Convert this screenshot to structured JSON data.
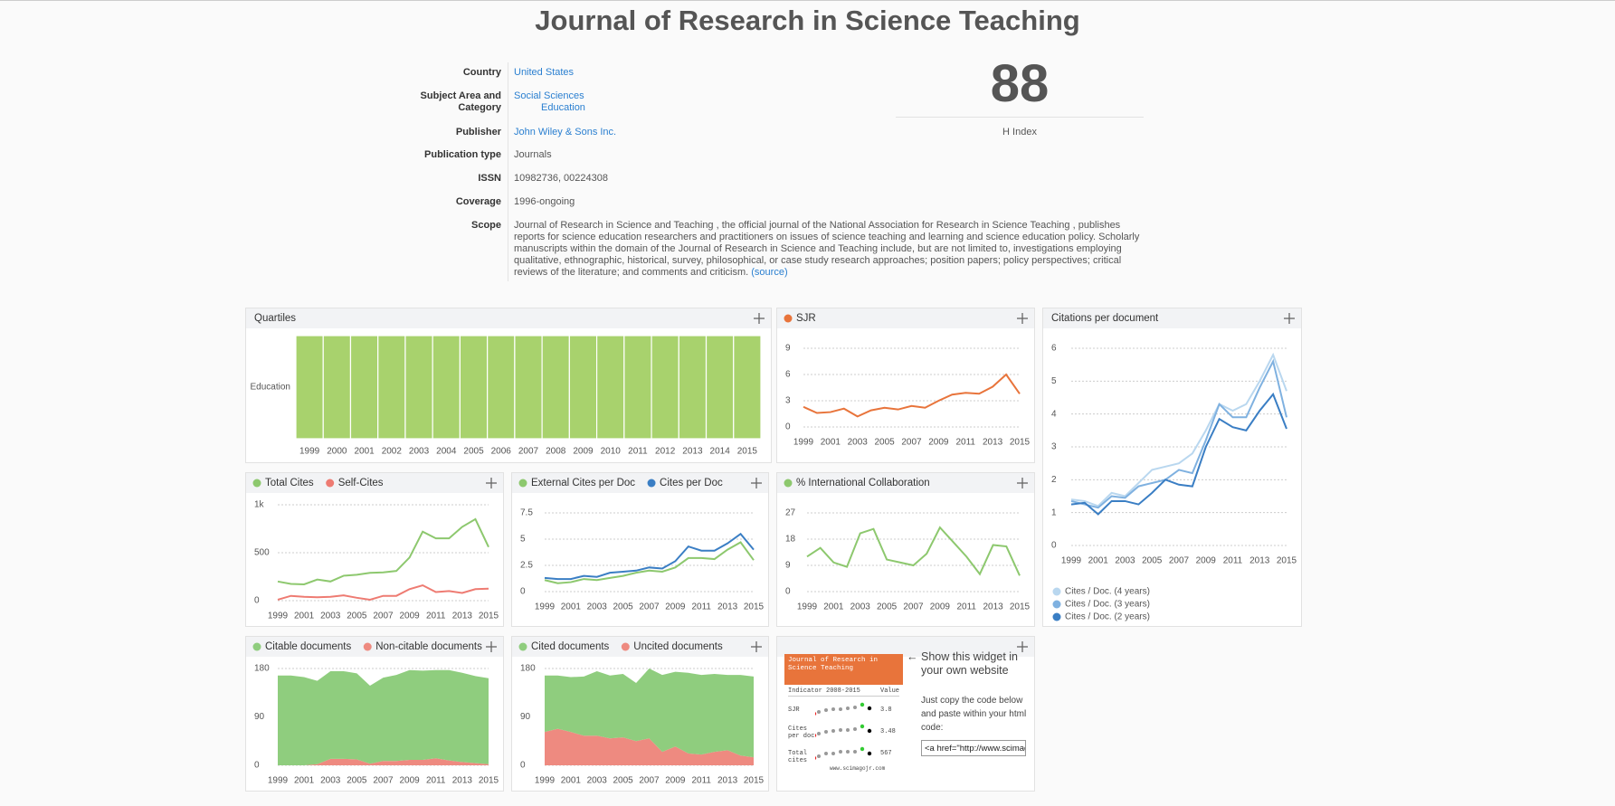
{
  "title": "Journal of Research in Science Teaching",
  "info": [
    {
      "label": "Country",
      "values": [
        "United States"
      ],
      "link": true
    },
    {
      "label": "Subject Area and Category",
      "values": [
        "Social Sciences",
        "Education"
      ],
      "link": true
    },
    {
      "label": "Publisher",
      "values": [
        "John Wiley & Sons Inc."
      ],
      "link": true
    },
    {
      "label": "Publication type",
      "values": [
        "Journals"
      ],
      "link": false
    },
    {
      "label": "ISSN",
      "values": [
        "10982736, 00224308"
      ],
      "link": false
    },
    {
      "label": "Coverage",
      "values": [
        "1996-ongoing"
      ],
      "link": false
    },
    {
      "label": "Scope",
      "values": [
        "Journal of Research in Science and Teaching , the official journal of the National Association for Research in Science Teaching , publishes reports for science education researchers and practitioners on issues of science teaching and learning and science education policy. Scholarly manuscripts within the domain of the Journal of Research in Science and Teaching include, but are not limited to, investigations employing qualitative, ethnographic, historical, survey, philosophical, or case study research approaches; position papers; policy perspectives; critical reviews of the literature; and comments and criticism. "
      ],
      "link": false,
      "source": "(source)"
    }
  ],
  "h_index": {
    "value": 88,
    "label": "H Index"
  },
  "chart_data": [
    {
      "type": "quartiles",
      "title": "Quartiles",
      "rows": [
        "Education"
      ],
      "color": "#a8d26d",
      "categories": [
        "1999",
        "2000",
        "2001",
        "2002",
        "2003",
        "2004",
        "2005",
        "2006",
        "2007",
        "2008",
        "2009",
        "2010",
        "2011",
        "2012",
        "2013",
        "2014",
        "2015"
      ]
    },
    {
      "type": "line",
      "x": [
        1999,
        2000,
        2001,
        2002,
        2003,
        2004,
        2005,
        2006,
        2007,
        2008,
        2009,
        2010,
        2011,
        2012,
        2013,
        2014,
        2015
      ],
      "xlim": [
        1999,
        2015
      ],
      "xticks": [
        1999,
        2001,
        2003,
        2005,
        2007,
        2009,
        2011,
        2013,
        2015
      ],
      "ylim": [
        0,
        9
      ],
      "yticks": [
        0,
        3,
        6,
        9
      ],
      "grid": true,
      "series": [
        {
          "name": "SJR",
          "color": "#e8743b",
          "values": [
            2.3,
            1.6,
            1.7,
            2.1,
            1.2,
            1.9,
            2.2,
            2.0,
            2.4,
            2.2,
            3.0,
            3.7,
            3.9,
            3.8,
            4.6,
            6.0,
            3.8
          ]
        }
      ]
    },
    {
      "type": "line",
      "title": "Citations per document",
      "legend": "bottom-left",
      "x": [
        1999,
        2000,
        2001,
        2002,
        2003,
        2004,
        2005,
        2006,
        2007,
        2008,
        2009,
        2010,
        2011,
        2012,
        2013,
        2014,
        2015
      ],
      "xlim": [
        1999,
        2015
      ],
      "xticks": [
        1999,
        2001,
        2003,
        2005,
        2007,
        2009,
        2011,
        2013,
        2015
      ],
      "ylim": [
        0,
        6
      ],
      "yticks": [
        0,
        1,
        2,
        3,
        4,
        5,
        6
      ],
      "grid": true,
      "series": [
        {
          "name": "Cites / Doc. (4 years)",
          "color": "#b9d7ef",
          "values": [
            1.4,
            1.35,
            1.2,
            1.6,
            1.5,
            1.9,
            2.3,
            2.4,
            2.5,
            2.8,
            3.5,
            4.3,
            4.1,
            4.3,
            5.0,
            5.8,
            4.7
          ]
        },
        {
          "name": "Cites / Doc. (3 years)",
          "color": "#7fb1e0",
          "values": [
            1.35,
            1.25,
            1.15,
            1.5,
            1.45,
            1.8,
            1.9,
            2.0,
            2.3,
            2.2,
            3.2,
            4.3,
            3.9,
            3.9,
            4.8,
            5.6,
            3.9
          ]
        },
        {
          "name": "Cites / Doc. (2 years)",
          "color": "#3a7ec4",
          "values": [
            1.25,
            1.3,
            0.95,
            1.35,
            1.35,
            1.25,
            1.6,
            2.0,
            1.85,
            1.8,
            3.0,
            3.85,
            3.6,
            3.5,
            4.1,
            4.6,
            3.55
          ]
        }
      ]
    },
    {
      "type": "line",
      "x": [
        1999,
        2000,
        2001,
        2002,
        2003,
        2004,
        2005,
        2006,
        2007,
        2008,
        2009,
        2010,
        2011,
        2012,
        2013,
        2014,
        2015
      ],
      "xlim": [
        1999,
        2015
      ],
      "xticks": [
        1999,
        2001,
        2003,
        2005,
        2007,
        2009,
        2011,
        2013,
        2015
      ],
      "ylim": [
        0,
        1000
      ],
      "yticks": [
        0,
        500,
        {
          "value": 1000,
          "label": "1k"
        }
      ],
      "grid": true,
      "series": [
        {
          "name": "Total Cites",
          "color": "#8dc86e",
          "values": [
            200,
            175,
            170,
            220,
            200,
            260,
            270,
            290,
            295,
            310,
            450,
            720,
            650,
            650,
            770,
            850,
            560
          ]
        },
        {
          "name": "Self-Cites",
          "color": "#ee7b72",
          "values": [
            10,
            50,
            40,
            35,
            40,
            55,
            30,
            10,
            50,
            50,
            120,
            160,
            90,
            100,
            80,
            120,
            125
          ]
        }
      ]
    },
    {
      "type": "line",
      "x": [
        1999,
        2000,
        2001,
        2002,
        2003,
        2004,
        2005,
        2006,
        2007,
        2008,
        2009,
        2010,
        2011,
        2012,
        2013,
        2014,
        2015
      ],
      "xlim": [
        1999,
        2015
      ],
      "xticks": [
        1999,
        2001,
        2003,
        2005,
        2007,
        2009,
        2011,
        2013,
        2015
      ],
      "ylim": [
        0,
        7.5
      ],
      "yticks": [
        0,
        2.5,
        5,
        7.5
      ],
      "grid": true,
      "series": [
        {
          "name": "External Cites per Doc",
          "color": "#8dc86e",
          "values": [
            1.1,
            0.8,
            0.9,
            1.2,
            1.1,
            1.3,
            1.5,
            1.8,
            2.0,
            1.9,
            2.3,
            3.2,
            3.2,
            3.1,
            4.0,
            4.7,
            3.0
          ]
        },
        {
          "name": "Cites per Doc",
          "color": "#3a7ec4",
          "values": [
            1.3,
            1.2,
            1.2,
            1.5,
            1.4,
            1.8,
            1.9,
            2.0,
            2.3,
            2.2,
            2.9,
            4.3,
            3.9,
            3.9,
            4.6,
            5.5,
            4.0
          ]
        }
      ]
    },
    {
      "type": "line",
      "x": [
        1999,
        2000,
        2001,
        2002,
        2003,
        2004,
        2005,
        2006,
        2007,
        2008,
        2009,
        2010,
        2011,
        2012,
        2013,
        2014,
        2015
      ],
      "xlim": [
        1999,
        2015
      ],
      "xticks": [
        1999,
        2001,
        2003,
        2005,
        2007,
        2009,
        2011,
        2013,
        2015
      ],
      "ylim": [
        0,
        27
      ],
      "yticks": [
        0,
        9,
        18,
        27
      ],
      "grid": true,
      "series": [
        {
          "name": "% International Collaboration",
          "color": "#8dc86e",
          "values": [
            12,
            15,
            10,
            8.5,
            20,
            21.5,
            11,
            10,
            9,
            13,
            22,
            17,
            12,
            6,
            16,
            15.5,
            5.5
          ]
        }
      ]
    },
    {
      "type": "area",
      "x": [
        1999,
        2000,
        2001,
        2002,
        2003,
        2004,
        2005,
        2006,
        2007,
        2008,
        2009,
        2010,
        2011,
        2012,
        2013,
        2014,
        2015
      ],
      "xlim": [
        1999,
        2015
      ],
      "xticks": [
        1999,
        2001,
        2003,
        2005,
        2007,
        2009,
        2011,
        2013,
        2015
      ],
      "ylim": [
        0,
        180
      ],
      "yticks": [
        0,
        90,
        180
      ],
      "grid": true,
      "series": [
        {
          "name": "Citable documents",
          "color": "#8fcd7e",
          "values": [
            167,
            167,
            164,
            155,
            163,
            163,
            160,
            145,
            155,
            160,
            167,
            166,
            164,
            168,
            166,
            162,
            160
          ]
        },
        {
          "name": "Non-citable documents",
          "color": "#ee8a80",
          "values": [
            0,
            0,
            0,
            2,
            12,
            12,
            11,
            3,
            8,
            8,
            10,
            10,
            13,
            9,
            6,
            4,
            2
          ]
        }
      ]
    },
    {
      "type": "area",
      "x": [
        1999,
        2000,
        2001,
        2002,
        2003,
        2004,
        2005,
        2006,
        2007,
        2008,
        2009,
        2010,
        2011,
        2012,
        2013,
        2014,
        2015
      ],
      "xlim": [
        1999,
        2015
      ],
      "xticks": [
        1999,
        2001,
        2003,
        2005,
        2007,
        2009,
        2011,
        2013,
        2015
      ],
      "ylim": [
        0,
        180
      ],
      "yticks": [
        0,
        90,
        180
      ],
      "grid": true,
      "series": [
        {
          "name": "Cited documents",
          "color": "#8fcd7e",
          "values": [
            105,
            99,
            102,
            110,
            120,
            117,
            118,
            108,
            130,
            143,
            139,
            150,
            148,
            145,
            140,
            150,
            150
          ]
        },
        {
          "name": "Uncited documents",
          "color": "#ee8a80",
          "values": [
            62,
            68,
            62,
            55,
            55,
            50,
            52,
            45,
            50,
            25,
            35,
            22,
            20,
            25,
            28,
            18,
            15
          ]
        }
      ]
    }
  ],
  "widget": {
    "image": {
      "title": "Journal of Research in Science Teaching",
      "columns": [
        "Indicator",
        "2008-2015",
        "Value"
      ],
      "rows": [
        {
          "name": "SJR",
          "value": 3.8
        },
        {
          "name": "Cites per doc",
          "value": 3.48
        },
        {
          "name": "Total cites",
          "value": 567
        }
      ],
      "footer": "www.scimagojr.com"
    },
    "heading": "Show this widget in your own website",
    "instructions": "Just copy the code below and paste within your html code:",
    "code": "<a href=\"http://www.scimagoj"
  }
}
